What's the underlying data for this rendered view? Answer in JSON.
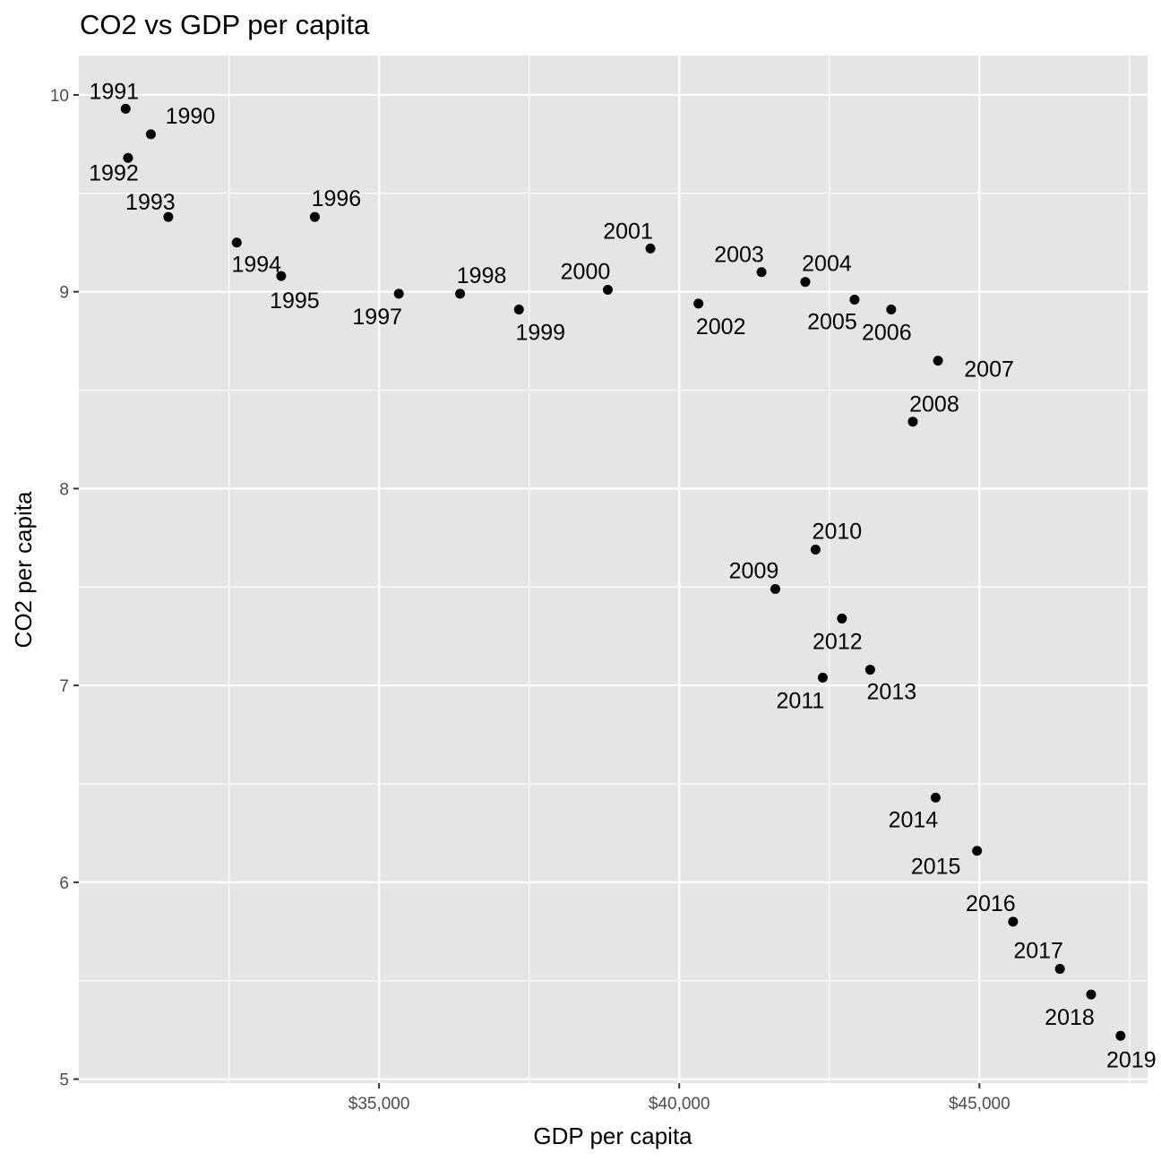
{
  "chart_data": {
    "type": "scatter",
    "title": "CO2 vs GDP per capita",
    "xlabel": "GDP per capita",
    "ylabel": "CO2 per capita",
    "xlim": [
      30000,
      47800
    ],
    "ylim": [
      4.98,
      10.2
    ],
    "x_ticks": [
      35000,
      40000,
      45000
    ],
    "x_tick_labels": [
      "$35,000",
      "$40,000",
      "$45,000"
    ],
    "y_ticks": [
      5,
      6,
      7,
      8,
      9,
      10
    ],
    "y_tick_labels": [
      "5",
      "6",
      "7",
      "8",
      "9",
      "10"
    ],
    "grid": true,
    "legend": "none",
    "colors": {
      "panel": "#e5e5e5",
      "grid": "#ffffff",
      "point": "#000000"
    },
    "points": [
      {
        "label": "1990",
        "x": 31200,
        "y": 9.8
      },
      {
        "label": "1991",
        "x": 30780,
        "y": 9.93
      },
      {
        "label": "1992",
        "x": 30820,
        "y": 9.68
      },
      {
        "label": "1993",
        "x": 31490,
        "y": 9.38
      },
      {
        "label": "1994",
        "x": 32630,
        "y": 9.25
      },
      {
        "label": "1995",
        "x": 33370,
        "y": 9.08
      },
      {
        "label": "1996",
        "x": 33930,
        "y": 9.38
      },
      {
        "label": "1997",
        "x": 35330,
        "y": 8.99
      },
      {
        "label": "1998",
        "x": 36350,
        "y": 8.99
      },
      {
        "label": "1999",
        "x": 37330,
        "y": 8.91
      },
      {
        "label": "2000",
        "x": 38810,
        "y": 9.01
      },
      {
        "label": "2001",
        "x": 39520,
        "y": 9.22
      },
      {
        "label": "2002",
        "x": 40320,
        "y": 8.94
      },
      {
        "label": "2003",
        "x": 41370,
        "y": 9.1
      },
      {
        "label": "2004",
        "x": 42100,
        "y": 9.05
      },
      {
        "label": "2005",
        "x": 42920,
        "y": 8.96
      },
      {
        "label": "2006",
        "x": 43530,
        "y": 8.91
      },
      {
        "label": "2007",
        "x": 44310,
        "y": 8.65
      },
      {
        "label": "2008",
        "x": 43890,
        "y": 8.34
      },
      {
        "label": "2009",
        "x": 41600,
        "y": 7.49
      },
      {
        "label": "2010",
        "x": 42270,
        "y": 7.69
      },
      {
        "label": "2011",
        "x": 42390,
        "y": 7.04
      },
      {
        "label": "2012",
        "x": 42710,
        "y": 7.34
      },
      {
        "label": "2013",
        "x": 43180,
        "y": 7.08
      },
      {
        "label": "2014",
        "x": 44270,
        "y": 6.43
      },
      {
        "label": "2015",
        "x": 44960,
        "y": 6.16
      },
      {
        "label": "2016",
        "x": 45560,
        "y": 5.8
      },
      {
        "label": "2017",
        "x": 46340,
        "y": 5.56
      },
      {
        "label": "2018",
        "x": 46860,
        "y": 5.43
      },
      {
        "label": "2019",
        "x": 47350,
        "y": 5.22
      }
    ]
  }
}
